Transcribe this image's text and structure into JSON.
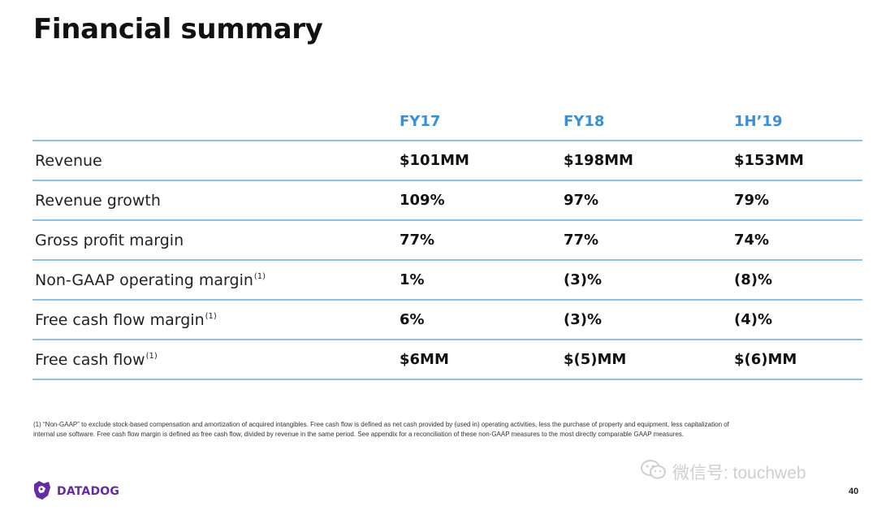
{
  "page": {
    "title": "Financial summary",
    "page_number": "40"
  },
  "table": {
    "columns": [
      "FY17",
      "FY18",
      "1H’19"
    ],
    "rows": [
      {
        "label": "Revenue",
        "footnote": "",
        "values": [
          "$101MM",
          "$198MM",
          "$153MM"
        ]
      },
      {
        "label": "Revenue growth",
        "footnote": "",
        "values": [
          "109%",
          "97%",
          "79%"
        ]
      },
      {
        "label": "Gross profit margin",
        "footnote": "",
        "values": [
          "77%",
          "77%",
          "74%"
        ]
      },
      {
        "label": "Non-GAAP operating margin",
        "footnote": "(1)",
        "values": [
          "1%",
          "(3)%",
          "(8)%"
        ]
      },
      {
        "label": "Free cash flow margin",
        "footnote": "(1)",
        "values": [
          "6%",
          "(3)%",
          "(4)%"
        ]
      },
      {
        "label": "Free cash flow",
        "footnote": "(1)",
        "values": [
          "$6MM",
          "$(5)MM",
          "$(6)MM"
        ]
      }
    ]
  },
  "footnote": {
    "line1": "(1) “Non-GAAP” to exclude stock-based compensation and amortization of acquired intangibles. Free cash flow is defined as net cash provided by (used in) operating activities, less the   purchase of property and equipment, less capitalization of",
    "line2": "internal use software. Free cash flow margin is defined as free cash flow, divided by revenue in the same period. See appendix for a reconciliation of these non-GAAP measures to the most directly comparable GAAP measures."
  },
  "logo": {
    "text": "DATADOG",
    "color": "#632ca6",
    "icon": "datadog-dog-icon"
  },
  "watermark": {
    "text": "微信号: touchweb",
    "icon": "wechat-icon"
  },
  "colors": {
    "header_blue": "#3b8fd9",
    "rule_blue": "#8cc0e8"
  }
}
